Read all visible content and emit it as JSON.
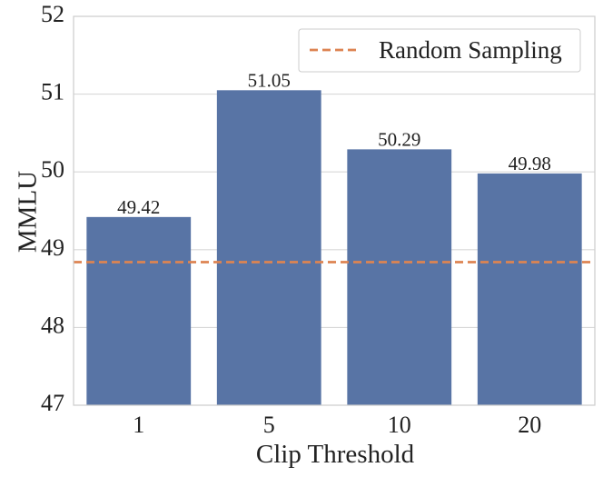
{
  "chart_data": {
    "type": "bar",
    "categories": [
      "1",
      "5",
      "10",
      "20"
    ],
    "values": [
      49.42,
      51.05,
      50.29,
      49.98
    ],
    "value_labels": [
      "49.42",
      "51.05",
      "50.29",
      "49.98"
    ],
    "xlabel": "Clip Threshold",
    "ylabel": "MMLU",
    "ylim": [
      47,
      52
    ],
    "yticks": [
      "47",
      "48",
      "49",
      "50",
      "51",
      "52"
    ],
    "grid": true,
    "legend_position": "top-right",
    "reference_line": {
      "name": "Random Sampling",
      "value": 48.84,
      "style": "dashed",
      "color": "#dd8452"
    },
    "bar_color": "#5874a5",
    "grid_color": "#d9d9d9",
    "frame_color": "#cccccc"
  }
}
